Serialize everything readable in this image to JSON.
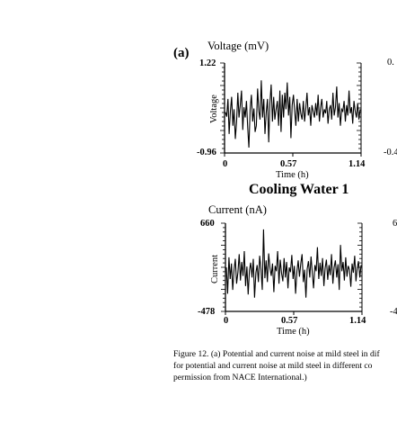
{
  "panel_label": "(a)",
  "section_title": "Cooling Water 1",
  "right_cut_labels": [
    "0.",
    "-0.4",
    "6",
    "-4"
  ],
  "caption_lines": [
    "Figure 12.   (a) Potential and current noise at mild steel in dif",
    "for potential and current noise at mild steel in different co",
    "permission from NACE International.)"
  ],
  "chart_data": [
    {
      "type": "line",
      "title": "Voltage (mV)",
      "ylabel": "Voltage",
      "xlabel": "Time (h)",
      "yticks": [
        "1.22",
        "-0.96"
      ],
      "xticks": [
        "0",
        "0.57",
        "1.14"
      ],
      "ylim": [
        -0.96,
        1.22
      ],
      "xlim": [
        0,
        1.14
      ],
      "series": [
        {
          "values": [
            0.03,
            -0.08,
            0.35,
            -0.5,
            0.05,
            0.4,
            -0.3,
            0.1,
            -0.62,
            -0.2,
            0.5,
            -0.1,
            0.2,
            0.55,
            -0.4,
            0.15,
            -0.1,
            0.3,
            -0.35,
            -0.83,
            0.1,
            0.45,
            -0.2,
            0.12,
            -0.45,
            -0.3,
            0.6,
            0.05,
            -0.15,
            0.8,
            -0.1,
            0.35,
            -0.5,
            0.02,
            0.35,
            -0.7,
            0.25,
            0.7,
            -0.2,
            0.4,
            -0.15,
            0.1,
            0.3,
            -0.3,
            0.55,
            -0.45,
            0.45,
            -0.1,
            0.5,
            0.1,
            0.75,
            -0.05,
            0.4,
            -0.6,
            0.2,
            0.45,
            0.05,
            -0.3,
            0.35,
            -0.2,
            0.25,
            0.0,
            -0.15,
            0.3,
            -0.2,
            0.1,
            0.5,
            -0.05,
            0.15,
            -0.3,
            0.2,
            0.05,
            -0.1,
            0.25,
            -0.05,
            0.45,
            -0.2,
            0.15,
            0.35,
            -0.1,
            0.1,
            0.0,
            0.3,
            -0.25,
            0.1,
            0.2,
            -0.15,
            0.5,
            -0.05,
            0.15,
            0.65,
            -0.1,
            0.25,
            -0.3,
            0.1,
            0.05,
            0.3,
            -0.2,
            0.2,
            -0.05,
            0.55,
            0.0,
            0.15,
            -0.25,
            0.3,
            0.05,
            -0.1,
            0.25,
            -0.15,
            0.1
          ]
        }
      ]
    },
    {
      "type": "line",
      "title": "Current (nA)",
      "ylabel": "Current",
      "xlabel": "Time (h)",
      "yticks": [
        "660",
        "-478"
      ],
      "xticks": [
        "0",
        "0.57",
        "1.14"
      ],
      "ylim": [
        -478,
        660
      ],
      "xlim": [
        0,
        1.14
      ],
      "series": [
        {
          "values": [
            90,
            -250,
            220,
            -60,
            140,
            -200,
            60,
            200,
            -120,
            30,
            260,
            -80,
            160,
            -20,
            300,
            -150,
            100,
            -260,
            50,
            150,
            -40,
            200,
            -300,
            20,
            120,
            -100,
            240,
            60,
            -200,
            580,
            -50,
            180,
            -100,
            270,
            80,
            -20,
            140,
            -230,
            110,
            40,
            300,
            -120,
            190,
            20,
            -90,
            210,
            -40,
            160,
            -180,
            90,
            30,
            250,
            -60,
            110,
            -250,
            40,
            180,
            -30,
            140,
            260,
            -100,
            60,
            -300,
            70,
            170,
            -40,
            230,
            20,
            -180,
            120,
            40,
            350,
            -60,
            150,
            -20,
            210,
            -150,
            80,
            190,
            -70,
            120,
            -10,
            260,
            -120,
            90,
            180,
            -40,
            130,
            -200,
            380,
            40,
            160,
            -80,
            220,
            -30,
            110,
            60,
            -160,
            140,
            20,
            240,
            -90,
            80,
            170,
            -40,
            120
          ]
        }
      ]
    }
  ]
}
